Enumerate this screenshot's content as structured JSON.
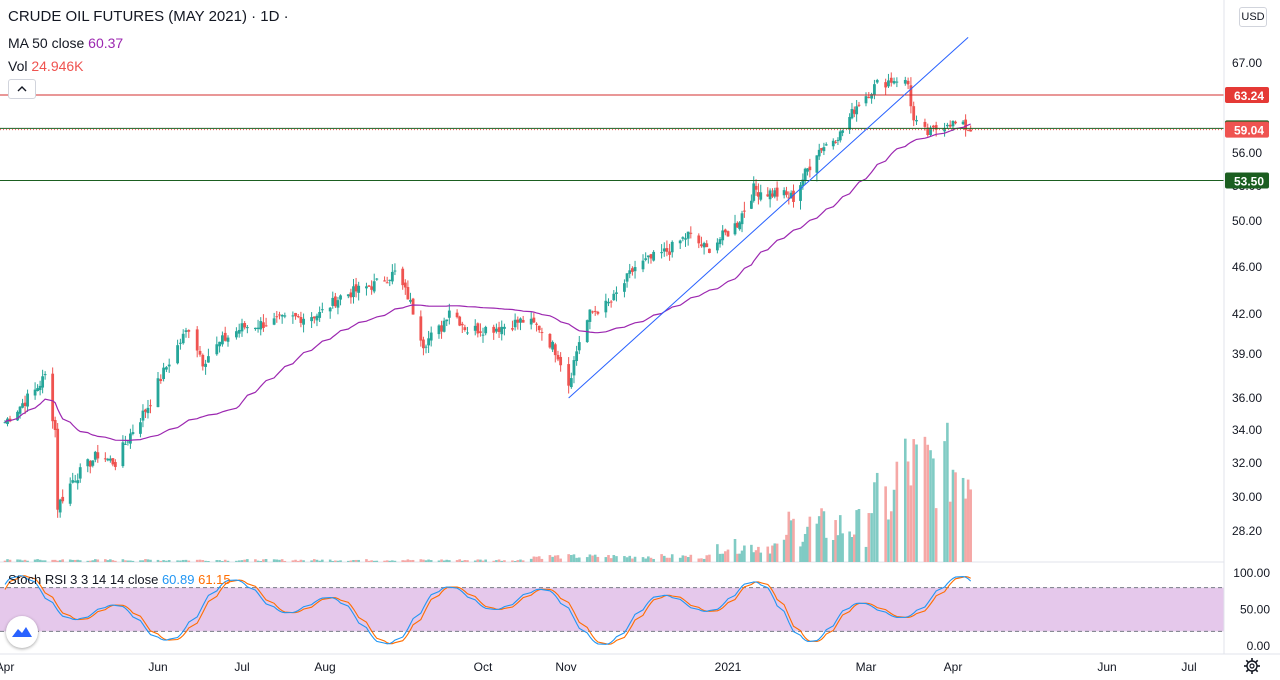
{
  "legend": {
    "title": "CRUDE OIL FUTURES (MAY 2021) · 1D ·",
    "ma_label": "MA 50 close",
    "ma_value": "60.37",
    "vol_label": "Vol",
    "vol_value": "24.946K"
  },
  "stoch": {
    "label": "Stoch RSI 3 3 14 14 close",
    "k_value": "60.89",
    "d_value": "61.15"
  },
  "currency": "USD",
  "colors": {
    "up": "#26a69a",
    "down": "#ef5350",
    "ma": "#9c27b0",
    "trendline": "#2962ff",
    "resistance": "#d32f2f",
    "support": "#1b5e20",
    "stoch_k": "#2196f3",
    "stoch_d": "#ff6d00",
    "stoch_band": "#e1bee7"
  },
  "icons": {
    "collapse": "chevron-up-icon",
    "logo": "tradingview-logo-icon",
    "settings": "gear-icon"
  },
  "chart_data": {
    "type": "candlestick",
    "title": "CRUDE OIL FUTURES (MAY 2021)",
    "interval": "1D",
    "price_axis_ticks": [
      "67.00",
      "59.00",
      "56.00",
      "53.00",
      "50.00",
      "46.00",
      "42.00",
      "39.00",
      "36.00",
      "34.00",
      "32.00",
      "30.00",
      "28.20"
    ],
    "time_axis_ticks": [
      "Apr",
      "Jun",
      "Jul",
      "Aug",
      "Oct",
      "Nov",
      "2021",
      "Mar",
      "Apr",
      "Jun",
      "Jul"
    ],
    "stoch_axis_ticks": [
      "100.00",
      "50.00",
      "0.00"
    ],
    "price_labels": [
      {
        "value": "63.24",
        "kind": "resistance"
      },
      {
        "value": "59.20",
        "kind": "support"
      },
      {
        "value": "59.04",
        "kind": "last_price"
      },
      {
        "value": "53.50",
        "kind": "support"
      }
    ],
    "horizontal_lines": [
      63.24,
      59.2,
      53.5
    ],
    "trendline": {
      "from": {
        "date": "2020-11-02",
        "price": 36.0
      },
      "to": {
        "date": "2021-04-07",
        "price": 69.5
      }
    },
    "ma50_last": 60.37,
    "volume_last": "24.946K",
    "stoch_rsi": {
      "k": 60.89,
      "d": 61.15,
      "upper_band": 80,
      "lower_band": 20
    },
    "price_series": [
      {
        "date": "2020-04",
        "close": 30
      },
      {
        "date": "2020-05",
        "close": 34
      },
      {
        "date": "2020-06",
        "close": 39.5
      },
      {
        "date": "2020-07",
        "close": 41.5
      },
      {
        "date": "2020-08",
        "close": 44
      },
      {
        "date": "2020-09",
        "close": 41
      },
      {
        "date": "2020-10",
        "close": 41.5
      },
      {
        "date": "2020-11",
        "close": 38
      },
      {
        "date": "2020-12",
        "close": 47.5
      },
      {
        "date": "2021-01",
        "close": 52.5
      },
      {
        "date": "2021-02",
        "close": 62
      },
      {
        "date": "2021-03",
        "close": 60
      },
      {
        "date": "2021-04",
        "close": 59.04
      }
    ]
  }
}
